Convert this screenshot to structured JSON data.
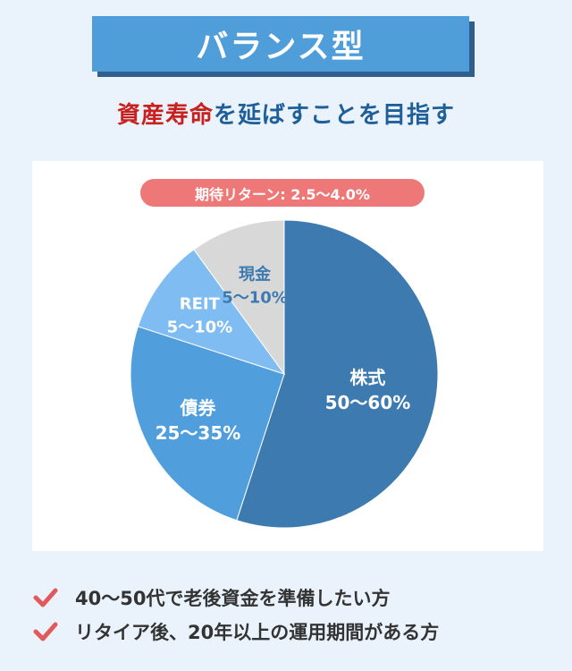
{
  "title": "バランス型",
  "subtitle": {
    "red": "資産寿命",
    "blue": "を延ばすことを目指す"
  },
  "return_label": "期待リターン: 2.5〜4.0%",
  "chart_data": {
    "type": "pie",
    "title": "",
    "slices": [
      {
        "name": "株式",
        "range": "50〜60%",
        "value": 55,
        "color": "#3d7ab0",
        "label_color": "#ffffff"
      },
      {
        "name": "債券",
        "range": "25〜35%",
        "value": 25,
        "color": "#519edd",
        "label_color": "#ffffff"
      },
      {
        "name": "REIT",
        "range": "5〜10%",
        "value": 10,
        "color": "#7fbcf1",
        "label_color": "#ffffff"
      },
      {
        "name": "現金",
        "range": "5〜10%",
        "value": 10,
        "color": "#d8d8d8",
        "label_color": "#3d7ab0"
      }
    ]
  },
  "checklist": [
    "40〜50代で老後資金を準備したい方",
    "リタイア後、20年以上の運用期間がある方"
  ],
  "colors": {
    "accent": "#4f9ed9",
    "check": "#e05a5a",
    "pill": "#ee7777"
  }
}
